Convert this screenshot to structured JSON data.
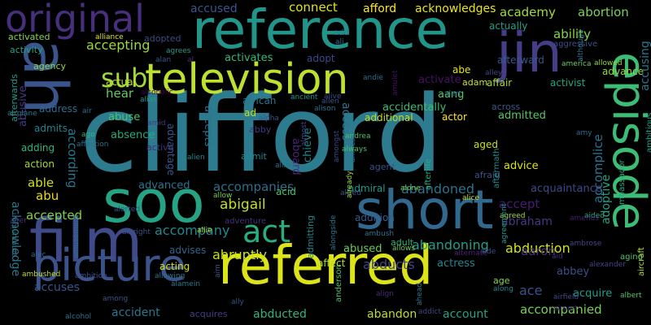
{
  "words": [
    {
      "text": "clifford",
      "color": "#2c7b8e"
    },
    {
      "text": "reference",
      "color": "#22958b"
    },
    {
      "text": "television",
      "color": "#bde12e"
    },
    {
      "text": "referred",
      "color": "#dce319"
    },
    {
      "text": "short",
      "color": "#30688e"
    },
    {
      "text": "soo",
      "color": "#26a384"
    },
    {
      "text": "film",
      "color": "#3e4a89"
    },
    {
      "text": "picture",
      "color": "#3b528b"
    },
    {
      "text": "episode",
      "color": "#3cbc75"
    },
    {
      "text": "original",
      "color": "#472f7d"
    },
    {
      "text": "jin",
      "color": "#433e85"
    },
    {
      "text": "ah",
      "color": "#3a548c"
    },
    {
      "text": "act",
      "color": "#29af7f"
    },
    {
      "text": "sub",
      "color": "#a0da39"
    },
    {
      "text": "abducts",
      "color": "#3f4788"
    },
    {
      "text": "abduction",
      "color": "#d2e21b"
    },
    {
      "text": "abigail",
      "color": "#c2df23"
    },
    {
      "text": "accompanied",
      "color": "#7ad151"
    },
    {
      "text": "accepting",
      "color": "#9bd93c"
    },
    {
      "text": "accepted",
      "color": "#7fd34e"
    },
    {
      "text": "according",
      "color": "#2a768e"
    },
    {
      "text": "abruptly",
      "color": "#c8e020"
    },
    {
      "text": "abandoned",
      "color": "#2d718e"
    },
    {
      "text": "abandoning",
      "color": "#1f9e89"
    },
    {
      "text": "accompany",
      "color": "#23888e"
    },
    {
      "text": "accompanies",
      "color": "#2e6e8e"
    },
    {
      "text": "accused",
      "color": "#39568c"
    },
    {
      "text": "connect",
      "color": "#dde318"
    },
    {
      "text": "afford",
      "color": "#fde725"
    },
    {
      "text": "acknowledges",
      "color": "#eae51a"
    },
    {
      "text": "academy",
      "color": "#a2da37"
    },
    {
      "text": "abortion",
      "color": "#7ad151"
    },
    {
      "text": "ability",
      "color": "#84d44b"
    },
    {
      "text": "advance",
      "color": "#95d840"
    },
    {
      "text": "accusing",
      "color": "#2a778e"
    },
    {
      "text": "accomplice",
      "color": "#2c738e"
    },
    {
      "text": "adoptive",
      "color": "#20a386"
    },
    {
      "text": "acknowledge",
      "color": "#2a788e"
    },
    {
      "text": "accuses",
      "color": "#39568c"
    },
    {
      "text": "accident",
      "color": "#2a788e"
    },
    {
      "text": "acquires",
      "color": "#433d84"
    },
    {
      "text": "abducted",
      "color": "#2fb47c"
    },
    {
      "text": "abandon",
      "color": "#bddf26"
    },
    {
      "text": "account",
      "color": "#20a486"
    },
    {
      "text": "acquire",
      "color": "#1f9f88"
    },
    {
      "text": "abbey",
      "color": "#3c508b"
    },
    {
      "text": "ace",
      "color": "#3b528b"
    },
    {
      "text": "aaron",
      "color": "#46327e"
    },
    {
      "text": "abraham",
      "color": "#453781"
    },
    {
      "text": "accept",
      "color": "#481c6e"
    },
    {
      "text": "acquaintance",
      "color": "#3f4889"
    },
    {
      "text": "advice",
      "color": "#d8e219"
    },
    {
      "text": "agent",
      "color": "#3a538b"
    },
    {
      "text": "admiral",
      "color": "#1e9b8a"
    },
    {
      "text": "addition",
      "color": "#375b8d"
    },
    {
      "text": "actress",
      "color": "#25838e"
    },
    {
      "text": "abused",
      "color": "#6ccd5a"
    },
    {
      "text": "adult",
      "color": "#2fb47c"
    },
    {
      "text": "affect",
      "color": "#b2dd2d"
    },
    {
      "text": "acting",
      "color": "#d5e21a"
    },
    {
      "text": "advises",
      "color": "#32658e"
    },
    {
      "text": "adventure",
      "color": "#46307e"
    },
    {
      "text": "advanced",
      "color": "#2c738e"
    },
    {
      "text": "absence",
      "color": "#25ab82"
    },
    {
      "text": "abuse",
      "color": "#48c16e"
    },
    {
      "text": "active",
      "color": "#472d7b"
    },
    {
      "text": "advantage",
      "color": "#3a548c"
    },
    {
      "text": "accepts",
      "color": "#2b748e"
    },
    {
      "text": "abby",
      "color": "#443983"
    },
    {
      "text": "admit",
      "color": "#24878e"
    },
    {
      "text": "acid",
      "color": "#4ac16d"
    },
    {
      "text": "achieve",
      "color": "#24868e"
    },
    {
      "text": "aboard",
      "color": "#4a2478"
    },
    {
      "text": "access",
      "color": "#2b758e"
    },
    {
      "text": "accidentally",
      "color": "#3dbc74"
    },
    {
      "text": "additional",
      "color": "#c2df23"
    },
    {
      "text": "actor",
      "color": "#fde725"
    },
    {
      "text": "admitted",
      "color": "#56c667"
    },
    {
      "text": "across",
      "color": "#38598c"
    },
    {
      "text": "activist",
      "color": "#22a785"
    },
    {
      "text": "afterward",
      "color": "#38588c"
    },
    {
      "text": "affair",
      "color": "#a8db34"
    },
    {
      "text": "activate",
      "color": "#471164"
    },
    {
      "text": "abe",
      "color": "#e5e419"
    },
    {
      "text": "adam",
      "color": "#cde11d"
    },
    {
      "text": "aang",
      "color": "#56c667"
    },
    {
      "text": "adopt",
      "color": "#3f4788"
    },
    {
      "text": "activates",
      "color": "#35b779"
    },
    {
      "text": "actual",
      "color": "#c0df25"
    },
    {
      "text": "hear",
      "color": "#63cb5f"
    },
    {
      "text": "address",
      "color": "#2e6d8e"
    },
    {
      "text": "admits",
      "color": "#25848e"
    },
    {
      "text": "adding",
      "color": "#31b57b"
    },
    {
      "text": "action",
      "color": "#a2da37"
    },
    {
      "text": "able",
      "color": "#cde11d"
    },
    {
      "text": "abu",
      "color": "#ecd81f"
    },
    {
      "text": "abusive",
      "color": "#443a83"
    },
    {
      "text": "afterwards",
      "color": "#1f998a"
    },
    {
      "text": "activity",
      "color": "#20a486"
    },
    {
      "text": "activated",
      "color": "#85d54a"
    },
    {
      "text": "agency",
      "color": "#8bd646"
    },
    {
      "text": "adopted",
      "color": "#3e4a89"
    },
    {
      "text": "african",
      "color": "#29798e"
    },
    {
      "text": "ad",
      "color": "#c0df25"
    },
    {
      "text": "agreed",
      "color": "#a2da37"
    },
    {
      "text": "agrees",
      "color": "#1f9e89"
    },
    {
      "text": "add",
      "color": "#287d8e"
    },
    {
      "text": "actually",
      "color": "#1fa187"
    },
    {
      "text": "aggressive",
      "color": "#3d4e8a"
    },
    {
      "text": "aged",
      "color": "#c8e020"
    },
    {
      "text": "afraid",
      "color": "#3a538b"
    },
    {
      "text": "afterlife",
      "color": "#26ad81"
    },
    {
      "text": "aftermath",
      "color": "#228c8d"
    },
    {
      "text": "age",
      "color": "#8bd646"
    },
    {
      "text": "aging",
      "color": "#50c46a"
    },
    {
      "text": "aircraft",
      "color": "#b0dd2f"
    },
    {
      "text": "ambassador",
      "color": "#25ab82"
    },
    {
      "text": "ambitious",
      "color": "#1fa188"
    },
    {
      "text": "alexander",
      "color": "#3f4889"
    },
    {
      "text": "albert",
      "color": "#52c569"
    },
    {
      "text": "aided",
      "color": "#25ac82"
    },
    {
      "text": "amends",
      "color": "#481c6e"
    },
    {
      "text": "amy",
      "color": "#2f6b8e"
    },
    {
      "text": "ambrose",
      "color": "#3e4a89"
    },
    {
      "text": "airfield",
      "color": "#3f4788"
    },
    {
      "text": "airport",
      "color": "#482374"
    },
    {
      "text": "aid",
      "color": "#472d7b"
    },
    {
      "text": "alone",
      "color": "#7ad151"
    },
    {
      "text": "alert",
      "color": "#2c738e"
    },
    {
      "text": "alley",
      "color": "#3f4889"
    },
    {
      "text": "although",
      "color": "#2a768e"
    },
    {
      "text": "america",
      "color": "#6ccd5a"
    },
    {
      "text": "allowed",
      "color": "#9bd93c"
    },
    {
      "text": "alan",
      "color": "#3b528b"
    },
    {
      "text": "alliance",
      "color": "#dce319"
    },
    {
      "text": "alias",
      "color": "#1f9e89"
    },
    {
      "text": "alcoholic",
      "color": "#440154"
    },
    {
      "text": "ali",
      "color": "#2f6c8e"
    },
    {
      "text": "al",
      "color": "#472d7b"
    },
    {
      "text": "andie",
      "color": "#2e6d8e"
    },
    {
      "text": "amulet",
      "color": "#471063"
    },
    {
      "text": "allen",
      "color": "#3a538b"
    },
    {
      "text": "alison",
      "color": "#2b748e"
    },
    {
      "text": "ancient",
      "color": "#1f948c"
    },
    {
      "text": "alive",
      "color": "#3e4c8a"
    },
    {
      "text": "air",
      "color": "#2c728e"
    },
    {
      "text": "airplane",
      "color": "#2a768e"
    },
    {
      "text": "ago",
      "color": "#31b57b"
    },
    {
      "text": "amid",
      "color": "#443983"
    },
    {
      "text": "affection",
      "color": "#2c728e"
    },
    {
      "text": "alpha",
      "color": "#3b528b"
    },
    {
      "text": "allison",
      "color": "#2a768e"
    },
    {
      "text": "alien",
      "color": "#24878e"
    },
    {
      "text": "almost",
      "color": "#3f4788"
    },
    {
      "text": "amongst",
      "color": "#3e4989"
    },
    {
      "text": "amnesia",
      "color": "#2c738e"
    },
    {
      "text": "andrea",
      "color": "#4ac16d"
    },
    {
      "text": "always",
      "color": "#4ac16d"
    },
    {
      "text": "alfred",
      "color": "#3a548c"
    },
    {
      "text": "allow",
      "color": "#75d054"
    },
    {
      "text": "alerted",
      "color": "#3b528b"
    },
    {
      "text": "ambush",
      "color": "#2c738e"
    },
    {
      "text": "already",
      "color": "#9bd93c"
    },
    {
      "text": "alice",
      "color": "#c8e020"
    },
    {
      "text": "allie",
      "color": "#b2dd2d"
    },
    {
      "text": "albright",
      "color": "#3b518b"
    },
    {
      "text": "alter",
      "color": "#472d7b"
    },
    {
      "text": "ammunition",
      "color": "#2a788e"
    },
    {
      "text": "admitting",
      "color": "#24868e"
    },
    {
      "text": "alongside",
      "color": "#2a768e"
    },
    {
      "text": "allows",
      "color": "#6ccd5a"
    },
    {
      "text": "aide",
      "color": "#3e4a89"
    },
    {
      "text": "agreement",
      "color": "#1f9a8a"
    },
    {
      "text": "alternate",
      "color": "#482374"
    },
    {
      "text": "along",
      "color": "#27808e"
    },
    {
      "text": "alec",
      "color": "#2f6b8e"
    },
    {
      "text": "ambition",
      "color": "#3b528b"
    },
    {
      "text": "amusement",
      "color": "#2c728e"
    },
    {
      "text": "allowing",
      "color": "#2c738e"
    },
    {
      "text": "alamein",
      "color": "#29798e"
    },
    {
      "text": "ambushed",
      "color": "#c2df23"
    },
    {
      "text": "aim",
      "color": "#3a548c"
    },
    {
      "text": "anderson",
      "color": "#52c569"
    },
    {
      "text": "align",
      "color": "#472d7b"
    },
    {
      "text": "ahead",
      "color": "#2b748e"
    },
    {
      "text": "addict",
      "color": "#3f4788"
    },
    {
      "text": "among",
      "color": "#3a548c"
    },
    {
      "text": "ally",
      "color": "#3a548c"
    },
    {
      "text": "alcohol",
      "color": "#2d718e"
    }
  ]
}
